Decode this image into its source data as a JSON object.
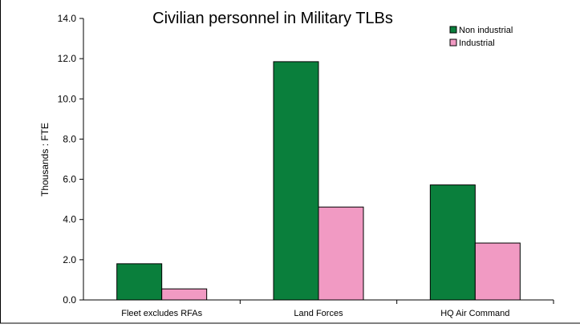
{
  "chart_data": {
    "type": "bar",
    "title": "Civilian personnel in Military TLBs",
    "xlabel": "",
    "ylabel": "Thousands : FTE",
    "ylim": [
      0,
      14
    ],
    "yticks": [
      "0.0",
      "2.0",
      "4.0",
      "6.0",
      "8.0",
      "10.0",
      "12.0",
      "14.0"
    ],
    "categories": [
      "Fleet excludes RFAs",
      "Land Forces",
      "HQ Air Command"
    ],
    "series": [
      {
        "name": "Non industrial",
        "values": [
          1.8,
          11.85,
          5.72
        ],
        "color": "#0a7f3c"
      },
      {
        "name": "Industrial",
        "values": [
          0.55,
          4.62,
          2.83
        ],
        "color": "#f19ac3"
      }
    ],
    "grid": false,
    "legend_position": "top-right"
  }
}
